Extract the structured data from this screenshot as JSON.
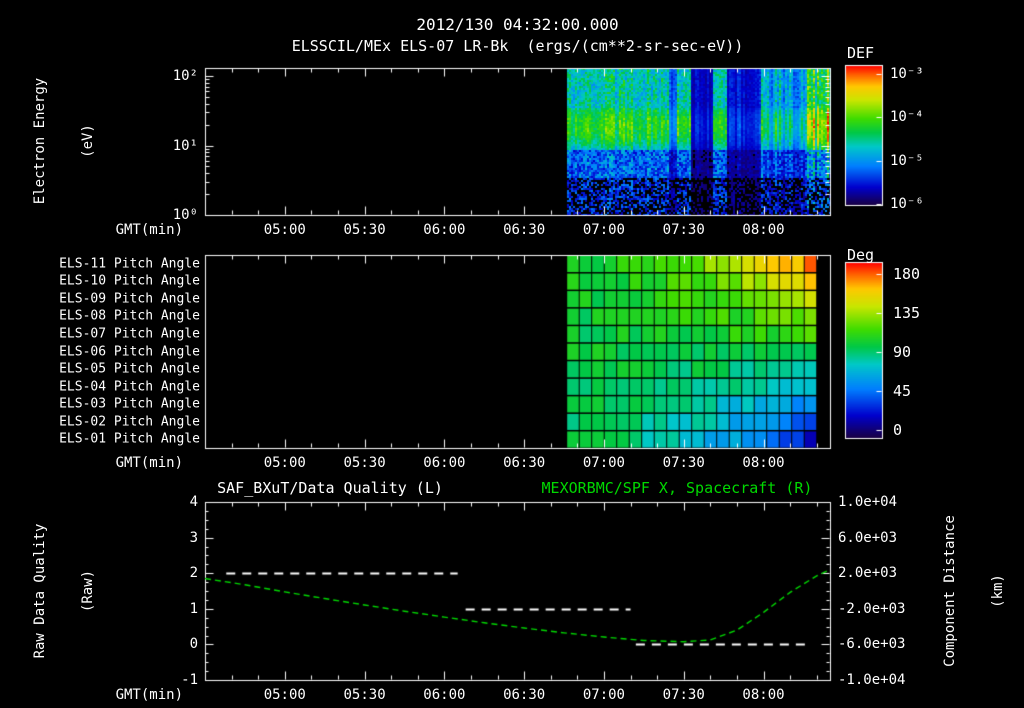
{
  "header": {
    "datetime": "2012/130 04:32:00.000",
    "subtitle": "ELSSCIL/MEx ELS-07 LR-Bk  (ergs/(cm**2-sr-sec-eV))"
  },
  "colors": {
    "background": "#000000",
    "foreground": "#ffffff",
    "series_green": "#00d800",
    "colormap_stops": [
      [
        0.0,
        "#1a0040"
      ],
      [
        0.13,
        "#0000cd"
      ],
      [
        0.28,
        "#007eff"
      ],
      [
        0.42,
        "#00c8c8"
      ],
      [
        0.52,
        "#00c846"
      ],
      [
        0.62,
        "#3fdc00"
      ],
      [
        0.75,
        "#c8e600"
      ],
      [
        0.85,
        "#ffc800"
      ],
      [
        0.93,
        "#ff6400"
      ],
      [
        1.0,
        "#ff0000"
      ]
    ]
  },
  "axes": {
    "gmt_label": "GMT(min)",
    "x_tick_labels": [
      "05:00",
      "05:30",
      "06:00",
      "06:30",
      "07:00",
      "07:30",
      "08:00"
    ],
    "x_range_gmt": [
      "04:30",
      "08:25"
    ]
  },
  "spectrogram_panel": {
    "ylabel_line1": "Electron Energy",
    "ylabel_line2": "(eV)",
    "y_tick_labels": [
      "10²",
      "10¹",
      "10⁰"
    ],
    "colorbar_title": "DEF",
    "colorbar_tick_labels": [
      "10⁻³",
      "10⁻⁴",
      "10⁻⁵",
      "10⁻⁶"
    ]
  },
  "pitch_panel": {
    "row_labels": [
      "ELS-11 Pitch Angle",
      "ELS-10 Pitch Angle",
      "ELS-09 Pitch Angle",
      "ELS-08 Pitch Angle",
      "ELS-07 Pitch Angle",
      "ELS-06 Pitch Angle",
      "ELS-05 Pitch Angle",
      "ELS-04 Pitch Angle",
      "ELS-03 Pitch Angle",
      "ELS-02 Pitch Angle",
      "ELS-01 Pitch Angle"
    ],
    "colorbar_title": "Deg",
    "colorbar_tick_labels": [
      "180",
      "135",
      "90",
      "45",
      "0"
    ]
  },
  "timeseries_panel": {
    "title_left": "SAF_BXuT/Data Quality (L)",
    "title_right": "MEXORBMC/SPF X, Spacecraft (R)",
    "ylabel_left_line1": "Raw Data Quality",
    "ylabel_left_line2": "(Raw)",
    "ylabel_right_line1": "Component Distance",
    "ylabel_right_line2": "(km)",
    "y_tick_labels_left": [
      "4",
      "3",
      "2",
      "1",
      "0",
      "-1"
    ],
    "y_tick_labels_right": [
      "1.0e+04",
      "6.0e+03",
      "2.0e+03",
      "-2.0e+03",
      "-6.0e+03",
      "-1.0e+04"
    ]
  },
  "chart_data": [
    {
      "type": "heatmap",
      "name": "electron-energy-spectrogram",
      "title": "ELSSCIL/MEx ELS-07 LR-Bk",
      "units": "ergs/(cm**2-sr-sec-eV)",
      "xlabel": "GMT(min)",
      "ylabel": "Electron Energy (eV)",
      "x_range_gmt": [
        "04:30",
        "08:25"
      ],
      "y_scale": "log",
      "y_range_ev": [
        1,
        130
      ],
      "value_scale": "log",
      "value_range": [
        1e-06,
        0.001
      ],
      "colorbar_label": "DEF",
      "data_start_gmt": "06:46",
      "features": {
        "bright_band_ev": [
          9,
          40
        ],
        "band_peak_level": 0.64,
        "upper_region_level": 0.48,
        "lower_region_level": 0.16,
        "intensity_segments": [
          {
            "gmt_start": "07:24",
            "gmt_end": "07:27",
            "factor": 0.45
          },
          {
            "gmt_start": "07:32",
            "gmt_end": "07:41",
            "factor": 0.3
          },
          {
            "gmt_start": "07:46",
            "gmt_end": "07:59",
            "factor": 0.35
          },
          {
            "gmt_start": "08:00",
            "gmt_end": "08:16",
            "factor": 0.75
          },
          {
            "gmt_start": "08:16",
            "gmt_end": "08:25",
            "factor": 1.25
          }
        ]
      }
    },
    {
      "type": "heatmap",
      "name": "pitch-angle-matrix",
      "rows": [
        "ELS-11",
        "ELS-10",
        "ELS-09",
        "ELS-08",
        "ELS-07",
        "ELS-06",
        "ELS-05",
        "ELS-04",
        "ELS-03",
        "ELS-02",
        "ELS-01"
      ],
      "value_units": "deg",
      "value_range": [
        0,
        180
      ],
      "colorbar_label": "Deg",
      "data_start_gmt": "06:46",
      "data_end_gmt": "08:20",
      "columns": 20,
      "pattern": {
        "start_value_deg": 95,
        "top_row_end_deg": 165,
        "bottom_row_end_deg": 25,
        "spread_exponent": 2
      }
    },
    {
      "type": "line",
      "name": "quality-and-spacecraft-x",
      "ylim_left": [
        -1,
        4
      ],
      "ylim_right": [
        -10000,
        10000
      ],
      "series": [
        {
          "name": "SAF_BXuT/Data Quality (L)",
          "axis": "left",
          "color": "#ffffff",
          "style": "dashed",
          "segments": [
            {
              "gmt_start": "04:38",
              "gmt_end": "06:05",
              "value": 2
            },
            {
              "gmt_start": "06:08",
              "gmt_end": "07:10",
              "value": 1
            },
            {
              "gmt_start": "07:12",
              "gmt_end": "08:18",
              "value": 0
            }
          ]
        },
        {
          "name": "MEXORBMC/SPF X, Spacecraft (R)",
          "axis": "right",
          "color": "#00d800",
          "style": "dashed",
          "points": [
            {
              "gmt": "04:30",
              "km": 1400
            },
            {
              "gmt": "04:45",
              "km": 700
            },
            {
              "gmt": "05:00",
              "km": -100
            },
            {
              "gmt": "05:15",
              "km": -850
            },
            {
              "gmt": "05:30",
              "km": -1570
            },
            {
              "gmt": "05:45",
              "km": -2270
            },
            {
              "gmt": "06:00",
              "km": -2930
            },
            {
              "gmt": "06:15",
              "km": -3570
            },
            {
              "gmt": "06:30",
              "km": -4160
            },
            {
              "gmt": "06:45",
              "km": -4700
            },
            {
              "gmt": "07:00",
              "km": -5170
            },
            {
              "gmt": "07:15",
              "km": -5560
            },
            {
              "gmt": "07:30",
              "km": -5700
            },
            {
              "gmt": "07:40",
              "km": -5500
            },
            {
              "gmt": "07:50",
              "km": -4400
            },
            {
              "gmt": "08:00",
              "km": -2400
            },
            {
              "gmt": "08:10",
              "km": -150
            },
            {
              "gmt": "08:20",
              "km": 1700
            },
            {
              "gmt": "08:25",
              "km": 2400
            }
          ]
        }
      ]
    }
  ]
}
